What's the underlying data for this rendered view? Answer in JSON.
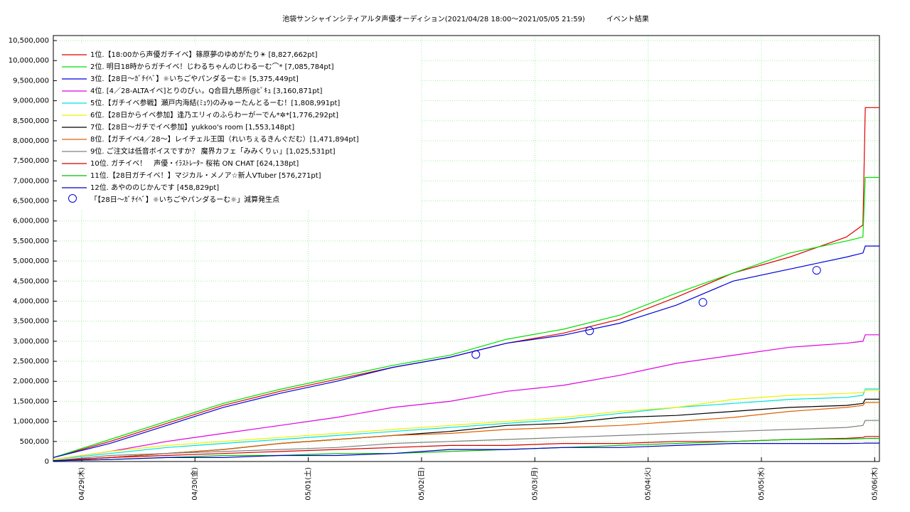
{
  "chart_data": {
    "type": "line",
    "title": "池袋サンシャインシティアルタ声優オーディション(2021/04/28 18:00〜2021/05/05 21:59)　　　イベント結果",
    "x": [
      0,
      12,
      24,
      36,
      48,
      60,
      72,
      84,
      96,
      108,
      120,
      132,
      144,
      156,
      168,
      171.5,
      172,
      175
    ],
    "xlim": [
      0,
      175
    ],
    "xticks": [
      {
        "value": 6,
        "label": "04/29(木)"
      },
      {
        "value": 30,
        "label": "04/30(金)"
      },
      {
        "value": 54,
        "label": "05/01(土)"
      },
      {
        "value": 78,
        "label": "05/02(日)"
      },
      {
        "value": 102,
        "label": "05/03(月)"
      },
      {
        "value": 126,
        "label": "05/04(火)"
      },
      {
        "value": 150,
        "label": "05/05(水)"
      },
      {
        "value": 174,
        "label": "05/06(木)"
      }
    ],
    "ylim": [
      0,
      10625000
    ],
    "yticks": [
      {
        "value": 0,
        "label": "0"
      },
      {
        "value": 500000,
        "label": "500,000"
      },
      {
        "value": 1000000,
        "label": "1,000,000"
      },
      {
        "value": 1500000,
        "label": "1,500,000"
      },
      {
        "value": 2000000,
        "label": "2,000,000"
      },
      {
        "value": 2500000,
        "label": "2,500,000"
      },
      {
        "value": 3000000,
        "label": "3,000,000"
      },
      {
        "value": 3500000,
        "label": "3,500,000"
      },
      {
        "value": 4000000,
        "label": "4,000,000"
      },
      {
        "value": 4500000,
        "label": "4,500,000"
      },
      {
        "value": 5000000,
        "label": "5,000,000"
      },
      {
        "value": 5500000,
        "label": "5,500,000"
      },
      {
        "value": 6000000,
        "label": "6,000,000"
      },
      {
        "value": 6500000,
        "label": "6,500,000"
      },
      {
        "value": 7000000,
        "label": "7,000,000"
      },
      {
        "value": 7500000,
        "label": "7,500,000"
      },
      {
        "value": 8000000,
        "label": "8,000,000"
      },
      {
        "value": 8500000,
        "label": "8,500,000"
      },
      {
        "value": 9000000,
        "label": "9,000,000"
      },
      {
        "value": 9500000,
        "label": "9,500,000"
      },
      {
        "value": 10000000,
        "label": "10,000,000"
      },
      {
        "value": 10500000,
        "label": "10,500,000"
      }
    ],
    "grid": true,
    "series": [
      {
        "name": "1位.【18:00から声優ガチイベ】篠原夢のゆめがたり☀ [8,827,662pt]",
        "color": "#e00000",
        "values": [
          100000,
          500000,
          950000,
          1400000,
          1750000,
          2050000,
          2350000,
          2600000,
          2950000,
          3200000,
          3550000,
          4100000,
          4700000,
          5100000,
          5600000,
          5900000,
          8827662,
          8827662
        ]
      },
      {
        "name": "2位. 明日18時からガチイベ！じわるちゃんのじわるーむ⌒* [7,085,784pt]",
        "color": "#00e000",
        "values": [
          100000,
          550000,
          1000000,
          1450000,
          1800000,
          2100000,
          2400000,
          2650000,
          3050000,
          3300000,
          3650000,
          4200000,
          4700000,
          5200000,
          5500000,
          5600000,
          7085784,
          7085784
        ]
      },
      {
        "name": "3位.【28日〜ｶﾞﾁｲﾍﾞ】☼いちごやパンダるーむ☼ [5,375,449pt]",
        "color": "#0000e0",
        "values": [
          100000,
          450000,
          900000,
          1350000,
          1700000,
          2000000,
          2350000,
          2600000,
          2950000,
          3150000,
          3450000,
          3900000,
          4500000,
          4800000,
          5100000,
          5200000,
          5375449,
          5375449
        ]
      },
      {
        "name": "4位. [4／28-ALTAイベ]とりのぴぃ。Q合目九慈所@ﾋﾟｷｭ [3,160,871pt]",
        "color": "#e000e0",
        "values": [
          50000,
          250000,
          500000,
          700000,
          900000,
          1100000,
          1350000,
          1500000,
          1750000,
          1900000,
          2150000,
          2450000,
          2650000,
          2850000,
          2950000,
          3000000,
          3160871,
          3160871
        ]
      },
      {
        "name": "5位.【ガチイベ参戦】瀬戸内海結(ﾐｭｳ)のみゅーたんとるーむ！[1,808,991pt]",
        "color": "#00e0e0",
        "values": [
          50000,
          200000,
          350000,
          450000,
          550000,
          650000,
          750000,
          850000,
          950000,
          1050000,
          1200000,
          1350000,
          1450000,
          1550000,
          1600000,
          1650000,
          1808991,
          1808991
        ]
      },
      {
        "name": "6位.【28日からイベ参加】逢乃エリィのふらわーがーでん*✲*[1,776,292pt]",
        "color": "#f0f000",
        "values": [
          50000,
          250000,
          400000,
          500000,
          600000,
          700000,
          800000,
          900000,
          1000000,
          1100000,
          1250000,
          1350000,
          1550000,
          1650000,
          1700000,
          1720000,
          1776292,
          1776292
        ]
      },
      {
        "name": "7位.【28日〜ガチでイベ参加】yukkoo's room [1,553,148pt]",
        "color": "#000000",
        "values": [
          20000,
          100000,
          200000,
          300000,
          450000,
          550000,
          650000,
          750000,
          900000,
          950000,
          1100000,
          1150000,
          1250000,
          1350000,
          1400000,
          1450000,
          1553148,
          1553148
        ]
      },
      {
        "name": "8位.【ガチイベ4／28〜】レイチェル王国（れいちぇるきんぐだむ）[1,471,894pt]",
        "color": "#e06000",
        "values": [
          20000,
          100000,
          200000,
          300000,
          450000,
          550000,
          650000,
          700000,
          800000,
          850000,
          900000,
          1000000,
          1100000,
          1250000,
          1350000,
          1400000,
          1471894,
          1471894
        ]
      },
      {
        "name": "9位. ご注文は低音ボイスですか？ 魔界カフェ「みみくりぃ」[1,025,531pt]",
        "color": "#808080",
        "values": [
          20000,
          150000,
          200000,
          250000,
          300000,
          350000,
          450000,
          500000,
          550000,
          600000,
          650000,
          700000,
          750000,
          800000,
          850000,
          900000,
          1025531,
          1025531
        ]
      },
      {
        "name": "10位. ガチイベ！　声優・ｲﾗｽﾄﾚｰﾀｰ 桜祐 ON CHAT [624,138pt]",
        "color": "#d00000",
        "values": [
          20000,
          100000,
          150000,
          200000,
          250000,
          300000,
          350000,
          400000,
          400000,
          450000,
          450000,
          500000,
          500000,
          550000,
          580000,
          600000,
          624138,
          624138
        ]
      },
      {
        "name": "11位.【28日ガチイベ！】マジカル・メノア☆新人VTuber [576,271pt]",
        "color": "#00c000",
        "values": [
          20000,
          50000,
          100000,
          150000,
          150000,
          200000,
          200000,
          250000,
          300000,
          350000,
          400000,
          450000,
          500000,
          550000,
          560000,
          570000,
          576271,
          576271
        ]
      },
      {
        "name": "12位. あやののじかんです [458,829pt]",
        "color": "#0000c0",
        "values": [
          20000,
          50000,
          100000,
          100000,
          150000,
          150000,
          200000,
          300000,
          300000,
          350000,
          350000,
          400000,
          450000,
          450000,
          450000,
          455000,
          458829,
          458829
        ]
      }
    ],
    "markers": {
      "name": "「【28日〜ｶﾞﾁｲﾍﾞ】☼いちごやパンダるーむ☼」減算発生点",
      "color": "#0000e0",
      "x": [
        89.5,
        113.6,
        137.6,
        161.7
      ],
      "values": [
        2670000,
        3260000,
        3970000,
        4770000
      ]
    }
  }
}
